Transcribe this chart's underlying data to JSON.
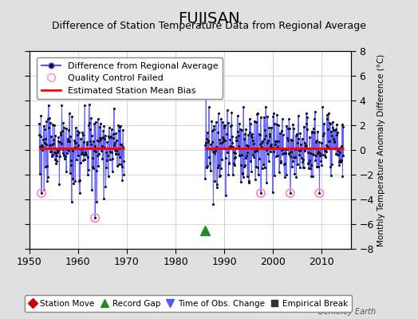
{
  "title": "FUJISAN",
  "subtitle": "Difference of Station Temperature Data from Regional Average",
  "ylabel_right": "Monthly Temperature Anomaly Difference (°C)",
  "watermark": "Berkeley Earth",
  "xlim": [
    1950,
    2016
  ],
  "ylim": [
    -8,
    8
  ],
  "yticks": [
    -8,
    -6,
    -4,
    -2,
    0,
    2,
    4,
    6,
    8
  ],
  "xticks": [
    1950,
    1960,
    1970,
    1980,
    1990,
    2000,
    2010
  ],
  "bias_line_y": 0.15,
  "bias_line_color": "#ff0000",
  "data_line_color": "#5555ff",
  "data_marker_color": "#111111",
  "qc_fail_color": "#ff88cc",
  "background_color": "#e0e0e0",
  "plot_background_color": "#ffffff",
  "grid_color": "#cccccc",
  "title_fontsize": 14,
  "subtitle_fontsize": 9,
  "tick_fontsize": 9,
  "legend_fontsize": 8,
  "seg1_start": 1952.0,
  "seg1_end": 1969.5,
  "seg2_start": 1986.0,
  "seg2_end": 2014.5,
  "record_gap_x": 1986.0,
  "record_gap_y": -6.5
}
